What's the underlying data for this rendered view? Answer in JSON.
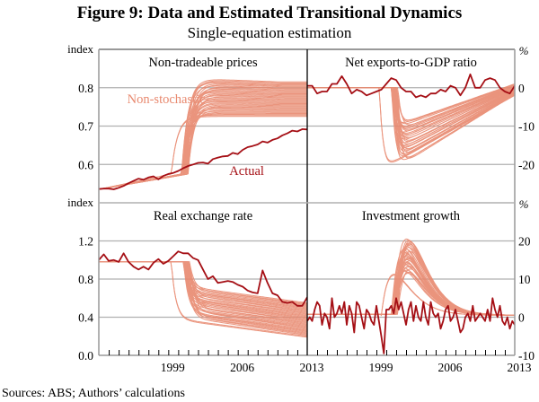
{
  "figure": {
    "title": "Figure 9: Data and Estimated Transitional Dynamics",
    "subtitle": "Single-equation estimation",
    "source_note": "Sources:  ABS; Authors’ calculations"
  },
  "colors": {
    "actual": "#a50f15",
    "simulation": "#e8896f",
    "grid": "#b0b0b0",
    "frame": "#999999",
    "divider": "#000000"
  },
  "chart_data": [
    {
      "type": "line",
      "panel": "top-left",
      "title": "Non-tradeable prices",
      "ylabel": "index",
      "axis_side": "left",
      "xlim": [
        1992,
        2013
      ],
      "ylim": [
        0.5,
        0.9
      ],
      "yticks": [
        0.6,
        0.7,
        0.8
      ],
      "ytick_labels": [
        "0.6",
        "0.7",
        "0.8"
      ],
      "grid": true,
      "annotations": [
        {
          "text": "Non-stochastic",
          "series": "simulations",
          "x": 1998.8,
          "y": 0.76
        },
        {
          "text": "Actual",
          "series": "actual",
          "x": 2006.9,
          "y": 0.572
        }
      ],
      "series": [
        {
          "name": "Actual",
          "x": [
            1992,
            1992.5,
            1993,
            1993.5,
            1994,
            1994.5,
            1995,
            1995.5,
            1996,
            1996.5,
            1997,
            1997.5,
            1998,
            1998.5,
            1999,
            1999.5,
            2000,
            2000.5,
            2001,
            2001.5,
            2002,
            2002.5,
            2003,
            2003.5,
            2004,
            2004.5,
            2005,
            2005.5,
            2006,
            2006.5,
            2007,
            2007.5,
            2008,
            2008.5,
            2009,
            2009.5,
            2010,
            2010.5,
            2011,
            2011.5,
            2012,
            2012.5,
            2013
          ],
          "y": [
            0.536,
            0.537,
            0.537,
            0.535,
            0.539,
            0.544,
            0.551,
            0.557,
            0.563,
            0.56,
            0.566,
            0.569,
            0.561,
            0.57,
            0.575,
            0.578,
            0.583,
            0.59,
            0.596,
            0.6,
            0.604,
            0.605,
            0.602,
            0.614,
            0.618,
            0.621,
            0.622,
            0.63,
            0.627,
            0.638,
            0.645,
            0.648,
            0.652,
            0.66,
            0.657,
            0.664,
            0.668,
            0.676,
            0.681,
            0.688,
            0.686,
            0.692,
            0.691
          ]
        },
        {
          "name": "Non-stochastic simulations",
          "count": 36,
          "start": [
            1992,
            0.535
          ],
          "pre_switch_end_level": [
            0.57,
            0.58
          ],
          "switch_years": [
            1999.3,
            2000.3,
            2001.0
          ],
          "switch_level_range": [
            0.725,
            0.825
          ],
          "end_level_range": [
            0.725,
            0.815
          ]
        }
      ]
    },
    {
      "type": "line",
      "panel": "top-right",
      "title": "Net exports-to-GDP ratio",
      "ylabel": "%",
      "axis_side": "right",
      "xlim": [
        1992,
        2013
      ],
      "ylim": [
        -30,
        10
      ],
      "yticks": [
        -20,
        -10,
        0
      ],
      "ytick_labels": [
        "-20",
        "-10",
        "0"
      ],
      "grid": true,
      "series": [
        {
          "name": "Actual",
          "x": [
            1992,
            1992.5,
            1993,
            1993.5,
            1994,
            1994.5,
            1995,
            1995.5,
            1996,
            1996.5,
            1997,
            1997.5,
            1998,
            1998.5,
            1999,
            1999.5,
            2000,
            2000.5,
            2001,
            2001.5,
            2002,
            2002.5,
            2003,
            2003.5,
            2004,
            2004.5,
            2005,
            2005.5,
            2006,
            2006.5,
            2007,
            2007.5,
            2008,
            2008.5,
            2009,
            2009.5,
            2010,
            2010.5,
            2011,
            2011.5,
            2012,
            2012.5,
            2013
          ],
          "y": [
            0.5,
            0.5,
            -1.5,
            -1.0,
            -1.0,
            1.0,
            1.0,
            3.0,
            1.0,
            -1.5,
            -0.5,
            -1.0,
            -2.0,
            -1.5,
            -1.0,
            -0.5,
            1.0,
            2.5,
            2.0,
            0.0,
            -1.0,
            -1.0,
            -2.5,
            -2.0,
            -2.5,
            -1.5,
            -1.5,
            -0.5,
            -1.0,
            0.5,
            0.0,
            -2.0,
            0.0,
            3.5,
            0.0,
            0.0,
            2.0,
            2.5,
            2.0,
            0.0,
            -1.0,
            -1.5,
            0.5
          ]
        },
        {
          "name": "Non-stochastic simulations",
          "count": 36,
          "start_level": 0,
          "switch_years": [
            1999.3,
            2000.5,
            2001.2
          ],
          "trough_year_range": [
            2002.0,
            2003.5
          ],
          "trough_level_range": [
            -20.5,
            -9.0
          ],
          "end_year": 2013,
          "end_level_range": [
            -2.0,
            1.0
          ]
        }
      ]
    },
    {
      "type": "line",
      "panel": "bottom-left",
      "title": "Real exchange rate",
      "ylabel": "index",
      "axis_side": "left",
      "xlim": [
        1992,
        2013
      ],
      "ylim": [
        0.0,
        1.6
      ],
      "yticks": [
        0.0,
        0.4,
        0.8,
        1.2
      ],
      "ytick_labels": [
        "0.0",
        "0.4",
        "0.8",
        "1.2"
      ],
      "xticks": [
        1999,
        2006,
        2013
      ],
      "xtick_labels": [
        "1999",
        "2006",
        "2013"
      ],
      "grid": true,
      "series": [
        {
          "name": "Actual",
          "x": [
            1992,
            1992.5,
            1993,
            1993.5,
            1994,
            1994.5,
            1995,
            1995.5,
            1996,
            1996.5,
            1997,
            1997.5,
            1998,
            1998.5,
            1999,
            1999.5,
            2000,
            2000.5,
            2001,
            2001.5,
            2002,
            2002.5,
            2003,
            2003.5,
            2004,
            2004.5,
            2005,
            2005.5,
            2006,
            2006.5,
            2007,
            2007.5,
            2008,
            2008.5,
            2009,
            2009.5,
            2010,
            2010.5,
            2011,
            2011.5,
            2012,
            2012.5,
            2013
          ],
          "y": [
            1.0,
            1.06,
            0.99,
            1.0,
            0.98,
            1.07,
            0.98,
            0.93,
            0.9,
            0.93,
            0.9,
            0.97,
            1.01,
            0.96,
            0.99,
            1.04,
            1.09,
            1.07,
            1.07,
            1.02,
            1.0,
            0.9,
            0.8,
            0.83,
            0.76,
            0.77,
            0.78,
            0.77,
            0.74,
            0.72,
            0.68,
            0.66,
            0.65,
            0.89,
            0.76,
            0.65,
            0.63,
            0.56,
            0.55,
            0.56,
            0.52,
            0.52,
            0.61
          ]
        },
        {
          "name": "Non-stochastic simulations",
          "count": 36,
          "start_level": 0.98,
          "switch_years": [
            1999.3,
            2000.5,
            2001.2
          ],
          "post_drop_level_range": [
            0.38,
            0.72
          ],
          "end_level_range": [
            0.19,
            0.55
          ]
        }
      ]
    },
    {
      "type": "line",
      "panel": "bottom-right",
      "title": "Investment growth",
      "ylabel": "%",
      "axis_side": "right",
      "xlim": [
        1992,
        2013
      ],
      "ylim": [
        -10,
        30
      ],
      "yticks": [
        -10,
        0,
        10,
        20
      ],
      "ytick_labels": [
        "-10",
        "0",
        "10",
        "20"
      ],
      "xticks": [
        1999,
        2006,
        2013
      ],
      "xtick_labels": [
        "1999",
        "2006",
        "2013"
      ],
      "grid": true,
      "series": [
        {
          "name": "Actual",
          "x": [
            1992,
            1992.25,
            1992.5,
            1992.75,
            1993,
            1993.25,
            1993.5,
            1993.75,
            1994,
            1994.25,
            1994.5,
            1994.75,
            1995,
            1995.25,
            1995.5,
            1995.75,
            1996,
            1996.25,
            1996.5,
            1996.75,
            1997,
            1997.25,
            1997.5,
            1997.75,
            1998,
            1998.25,
            1998.5,
            1998.75,
            1999,
            1999.25,
            1999.5,
            1999.75,
            2000,
            2000.25,
            2000.5,
            2000.75,
            2001,
            2001.25,
            2001.5,
            2001.75,
            2002,
            2002.25,
            2002.5,
            2002.75,
            2003,
            2003.25,
            2003.5,
            2003.75,
            2004,
            2004.25,
            2004.5,
            2004.75,
            2005,
            2005.25,
            2005.5,
            2005.75,
            2006,
            2006.25,
            2006.5,
            2006.75,
            2007,
            2007.25,
            2007.5,
            2007.75,
            2008,
            2008.25,
            2008.5,
            2008.75,
            2009,
            2009.25,
            2009.5,
            2009.75,
            2010,
            2010.25,
            2010.5,
            2010.75,
            2011,
            2011.25,
            2011.5,
            2011.75,
            2012,
            2012.25,
            2012.5,
            2012.75,
            2013
          ],
          "y": [
            -1,
            0,
            -1,
            2,
            4,
            3,
            -2,
            1,
            0,
            -3,
            5,
            0,
            1,
            3,
            1,
            4,
            -2,
            3,
            1,
            -4,
            4,
            3,
            0,
            -3,
            2,
            1,
            -1,
            -2,
            3,
            -1,
            -5,
            -9.5,
            2,
            2,
            3,
            1,
            5,
            2,
            4,
            1,
            -2,
            2,
            4,
            -1,
            3,
            0,
            -1,
            4,
            0,
            -2,
            4,
            1,
            0,
            1,
            -3,
            -1,
            2,
            3,
            -1,
            0,
            2,
            -1,
            -4,
            -3,
            0,
            1,
            -1,
            3,
            -1,
            0,
            1,
            0,
            -1,
            2,
            -1,
            5,
            2,
            0,
            3,
            -1,
            -2,
            0,
            -3,
            -1,
            -2
          ]
        },
        {
          "name": "Non-stochastic simulations",
          "count": 36,
          "baseline_level": 0.8,
          "switch_years": [
            1999.5,
            2000.5,
            2001.2
          ],
          "peak_level_range": [
            11,
            20.5
          ],
          "end_level": 0.5
        }
      ]
    }
  ]
}
